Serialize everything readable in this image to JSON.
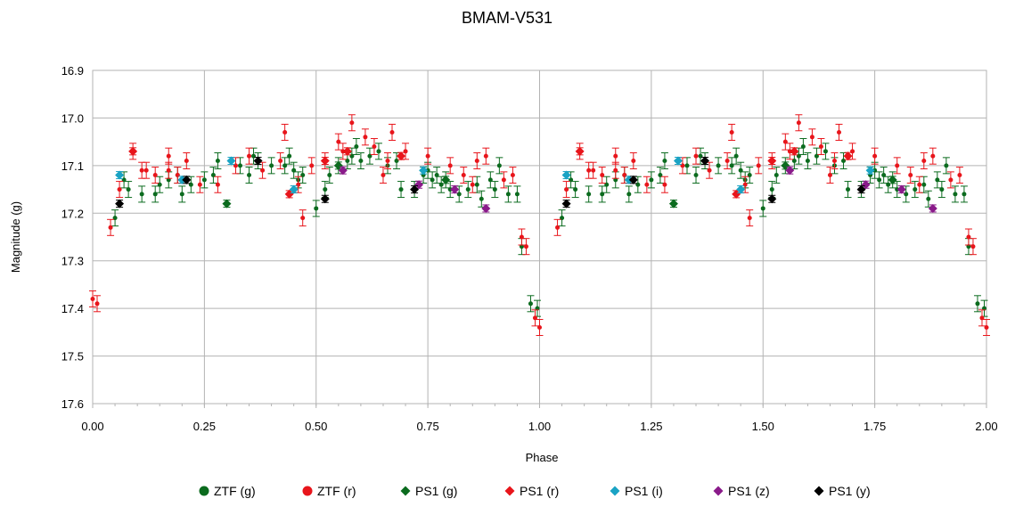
{
  "chart_data": {
    "type": "scatter",
    "title": "BMAM-V531",
    "xlabel": "Phase",
    "ylabel": "Magnitude (g)",
    "xlim": [
      0,
      2
    ],
    "ylim": [
      16.9,
      17.6
    ],
    "y_inverted": true,
    "x_ticks": [
      "0.00",
      "0.25",
      "0.50",
      "0.75",
      "1.00",
      "1.25",
      "1.50",
      "1.75",
      "2.00"
    ],
    "y_ticks": [
      "16.9",
      "17.0",
      "17.1",
      "17.2",
      "17.3",
      "17.4",
      "17.5",
      "17.6"
    ],
    "grid": true,
    "legend_position": "bottom",
    "series": [
      {
        "name": "ZTF (g)",
        "color": "#0b6b1e",
        "marker": "circle",
        "size": 4,
        "points": [
          [
            0.05,
            17.21
          ],
          [
            0.07,
            17.13
          ],
          [
            0.08,
            17.15
          ],
          [
            0.11,
            17.16
          ],
          [
            0.14,
            17.16
          ],
          [
            0.15,
            17.14
          ],
          [
            0.17,
            17.13
          ],
          [
            0.19,
            17.12
          ],
          [
            0.2,
            17.16
          ],
          [
            0.22,
            17.14
          ],
          [
            0.25,
            17.13
          ],
          [
            0.27,
            17.12
          ],
          [
            0.28,
            17.09
          ],
          [
            0.33,
            17.1
          ],
          [
            0.35,
            17.12
          ],
          [
            0.36,
            17.08
          ],
          [
            0.37,
            17.09
          ],
          [
            0.4,
            17.1
          ],
          [
            0.43,
            17.1
          ],
          [
            0.44,
            17.08
          ],
          [
            0.45,
            17.11
          ],
          [
            0.46,
            17.13
          ],
          [
            0.47,
            17.12
          ],
          [
            0.5,
            17.19
          ],
          [
            0.52,
            17.15
          ],
          [
            0.53,
            17.12
          ],
          [
            0.55,
            17.1
          ],
          [
            0.57,
            17.09
          ],
          [
            0.58,
            17.08
          ],
          [
            0.59,
            17.06
          ],
          [
            0.6,
            17.09
          ],
          [
            0.62,
            17.08
          ],
          [
            0.64,
            17.07
          ],
          [
            0.66,
            17.1
          ],
          [
            0.68,
            17.09
          ],
          [
            0.69,
            17.15
          ],
          [
            0.72,
            17.15
          ],
          [
            0.74,
            17.12
          ],
          [
            0.75,
            17.11
          ],
          [
            0.76,
            17.13
          ],
          [
            0.77,
            17.12
          ],
          [
            0.78,
            17.14
          ],
          [
            0.79,
            17.13
          ],
          [
            0.8,
            17.15
          ],
          [
            0.82,
            17.16
          ],
          [
            0.84,
            17.15
          ],
          [
            0.86,
            17.14
          ],
          [
            0.87,
            17.17
          ],
          [
            0.89,
            17.13
          ],
          [
            0.9,
            17.15
          ],
          [
            0.91,
            17.1
          ],
          [
            0.93,
            17.16
          ],
          [
            0.95,
            17.16
          ],
          [
            0.96,
            17.27
          ],
          [
            0.98,
            17.39
          ],
          [
            0.995,
            17.4
          ],
          [
            1.05,
            17.21
          ],
          [
            1.07,
            17.13
          ],
          [
            1.08,
            17.15
          ],
          [
            1.11,
            17.16
          ],
          [
            1.14,
            17.16
          ],
          [
            1.15,
            17.14
          ],
          [
            1.17,
            17.13
          ],
          [
            1.19,
            17.12
          ],
          [
            1.2,
            17.16
          ],
          [
            1.22,
            17.14
          ],
          [
            1.25,
            17.13
          ],
          [
            1.27,
            17.12
          ],
          [
            1.28,
            17.09
          ],
          [
            1.33,
            17.1
          ],
          [
            1.35,
            17.12
          ],
          [
            1.36,
            17.08
          ],
          [
            1.37,
            17.09
          ],
          [
            1.4,
            17.1
          ],
          [
            1.43,
            17.1
          ],
          [
            1.44,
            17.08
          ],
          [
            1.45,
            17.11
          ],
          [
            1.46,
            17.13
          ],
          [
            1.47,
            17.12
          ],
          [
            1.5,
            17.19
          ],
          [
            1.52,
            17.15
          ],
          [
            1.53,
            17.12
          ],
          [
            1.55,
            17.1
          ],
          [
            1.57,
            17.09
          ],
          [
            1.58,
            17.08
          ],
          [
            1.59,
            17.06
          ],
          [
            1.6,
            17.09
          ],
          [
            1.62,
            17.08
          ],
          [
            1.64,
            17.07
          ],
          [
            1.66,
            17.1
          ],
          [
            1.68,
            17.09
          ],
          [
            1.69,
            17.15
          ],
          [
            1.72,
            17.15
          ],
          [
            1.74,
            17.12
          ],
          [
            1.75,
            17.11
          ],
          [
            1.76,
            17.13
          ],
          [
            1.77,
            17.12
          ],
          [
            1.78,
            17.14
          ],
          [
            1.79,
            17.13
          ],
          [
            1.8,
            17.15
          ],
          [
            1.82,
            17.16
          ],
          [
            1.84,
            17.15
          ],
          [
            1.86,
            17.14
          ],
          [
            1.87,
            17.17
          ],
          [
            1.89,
            17.13
          ],
          [
            1.9,
            17.15
          ],
          [
            1.91,
            17.1
          ],
          [
            1.93,
            17.16
          ],
          [
            1.95,
            17.16
          ],
          [
            1.96,
            17.27
          ],
          [
            1.98,
            17.39
          ],
          [
            1.995,
            17.4
          ]
        ]
      },
      {
        "name": "ZTF (r)",
        "color": "#e8151b",
        "marker": "circle",
        "size": 4,
        "points": [
          [
            0.0,
            17.38
          ],
          [
            0.01,
            17.39
          ],
          [
            0.04,
            17.23
          ],
          [
            0.06,
            17.15
          ],
          [
            0.09,
            17.07
          ],
          [
            0.11,
            17.11
          ],
          [
            0.12,
            17.11
          ],
          [
            0.14,
            17.12
          ],
          [
            0.17,
            17.08
          ],
          [
            0.17,
            17.11
          ],
          [
            0.19,
            17.12
          ],
          [
            0.21,
            17.09
          ],
          [
            0.24,
            17.14
          ],
          [
            0.28,
            17.14
          ],
          [
            0.32,
            17.1
          ],
          [
            0.35,
            17.08
          ],
          [
            0.38,
            17.11
          ],
          [
            0.42,
            17.09
          ],
          [
            0.43,
            17.03
          ],
          [
            0.46,
            17.14
          ],
          [
            0.47,
            17.21
          ],
          [
            0.49,
            17.1
          ],
          [
            0.52,
            17.09
          ],
          [
            0.55,
            17.05
          ],
          [
            0.56,
            17.07
          ],
          [
            0.58,
            17.01
          ],
          [
            0.61,
            17.04
          ],
          [
            0.63,
            17.06
          ],
          [
            0.65,
            17.12
          ],
          [
            0.66,
            17.09
          ],
          [
            0.67,
            17.03
          ],
          [
            0.7,
            17.07
          ],
          [
            0.75,
            17.08
          ],
          [
            0.8,
            17.1
          ],
          [
            0.83,
            17.12
          ],
          [
            0.85,
            17.14
          ],
          [
            0.86,
            17.09
          ],
          [
            0.88,
            17.08
          ],
          [
            0.92,
            17.13
          ],
          [
            0.94,
            17.12
          ],
          [
            0.96,
            17.25
          ],
          [
            0.97,
            17.27
          ],
          [
            0.99,
            17.42
          ],
          [
            1.0,
            17.44
          ],
          [
            1.04,
            17.23
          ],
          [
            1.06,
            17.15
          ],
          [
            1.09,
            17.07
          ],
          [
            1.11,
            17.11
          ],
          [
            1.12,
            17.11
          ],
          [
            1.14,
            17.12
          ],
          [
            1.17,
            17.08
          ],
          [
            1.17,
            17.11
          ],
          [
            1.19,
            17.12
          ],
          [
            1.21,
            17.09
          ],
          [
            1.24,
            17.14
          ],
          [
            1.28,
            17.14
          ],
          [
            1.32,
            17.1
          ],
          [
            1.35,
            17.08
          ],
          [
            1.38,
            17.11
          ],
          [
            1.42,
            17.09
          ],
          [
            1.43,
            17.03
          ],
          [
            1.46,
            17.14
          ],
          [
            1.47,
            17.21
          ],
          [
            1.49,
            17.1
          ],
          [
            1.52,
            17.09
          ],
          [
            1.55,
            17.05
          ],
          [
            1.56,
            17.07
          ],
          [
            1.58,
            17.01
          ],
          [
            1.61,
            17.04
          ],
          [
            1.63,
            17.06
          ],
          [
            1.65,
            17.12
          ],
          [
            1.66,
            17.09
          ],
          [
            1.67,
            17.03
          ],
          [
            1.7,
            17.07
          ],
          [
            1.75,
            17.08
          ],
          [
            1.8,
            17.1
          ],
          [
            1.83,
            17.12
          ],
          [
            1.85,
            17.14
          ],
          [
            1.86,
            17.09
          ],
          [
            1.88,
            17.08
          ],
          [
            1.92,
            17.13
          ],
          [
            1.94,
            17.12
          ],
          [
            1.96,
            17.25
          ],
          [
            1.97,
            17.27
          ],
          [
            1.99,
            17.42
          ],
          [
            2.0,
            17.44
          ]
        ]
      },
      {
        "name": "PS1 (g)",
        "color": "#0b6b1e",
        "marker": "diamond",
        "size": 5,
        "points": [
          [
            0.3,
            17.18
          ],
          [
            0.55,
            17.1
          ],
          [
            0.79,
            17.13
          ],
          [
            1.3,
            17.18
          ],
          [
            1.55,
            17.1
          ],
          [
            1.79,
            17.13
          ]
        ]
      },
      {
        "name": "PS1 (r)",
        "color": "#e8151b",
        "marker": "diamond",
        "size": 5,
        "points": [
          [
            0.09,
            17.07
          ],
          [
            0.44,
            17.16
          ],
          [
            0.52,
            17.09
          ],
          [
            0.57,
            17.07
          ],
          [
            0.69,
            17.08
          ],
          [
            1.09,
            17.07
          ],
          [
            1.44,
            17.16
          ],
          [
            1.52,
            17.09
          ],
          [
            1.57,
            17.07
          ],
          [
            1.69,
            17.08
          ]
        ]
      },
      {
        "name": "PS1 (i)",
        "color": "#1aa3c4",
        "marker": "diamond",
        "size": 5,
        "points": [
          [
            0.06,
            17.12
          ],
          [
            0.2,
            17.13
          ],
          [
            0.31,
            17.09
          ],
          [
            0.45,
            17.15
          ],
          [
            0.74,
            17.11
          ],
          [
            1.06,
            17.12
          ],
          [
            1.2,
            17.13
          ],
          [
            1.31,
            17.09
          ],
          [
            1.45,
            17.15
          ],
          [
            1.74,
            17.11
          ]
        ]
      },
      {
        "name": "PS1 (z)",
        "color": "#8a1a8a",
        "marker": "diamond",
        "size": 5,
        "points": [
          [
            0.56,
            17.11
          ],
          [
            0.73,
            17.14
          ],
          [
            0.81,
            17.15
          ],
          [
            0.88,
            17.19
          ],
          [
            1.56,
            17.11
          ],
          [
            1.73,
            17.14
          ],
          [
            1.81,
            17.15
          ],
          [
            1.88,
            17.19
          ]
        ]
      },
      {
        "name": "PS1 (y)",
        "color": "#000000",
        "marker": "diamond",
        "size": 5,
        "points": [
          [
            0.06,
            17.18
          ],
          [
            0.21,
            17.13
          ],
          [
            0.37,
            17.09
          ],
          [
            0.52,
            17.17
          ],
          [
            0.72,
            17.15
          ],
          [
            1.06,
            17.18
          ],
          [
            1.21,
            17.13
          ],
          [
            1.37,
            17.09
          ],
          [
            1.52,
            17.17
          ],
          [
            1.72,
            17.15
          ]
        ]
      }
    ]
  }
}
